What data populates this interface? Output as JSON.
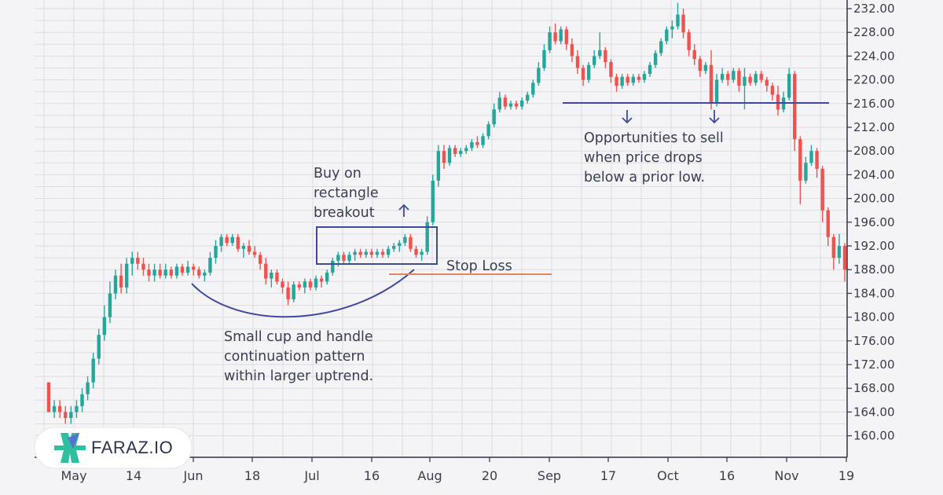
{
  "chart_data": {
    "type": "candlestick",
    "title": "",
    "xlabel": "",
    "ylabel": "",
    "ylim": [
      158,
      233
    ],
    "y_ticks": [
      "232.00",
      "228.00",
      "224.00",
      "220.00",
      "216.00",
      "212.00",
      "208.00",
      "204.00",
      "200.00",
      "196.00",
      "192.00",
      "188.00",
      "184.00",
      "180.00",
      "176.00",
      "172.00",
      "168.00",
      "164.00",
      "160.00"
    ],
    "x_ticks": [
      "May",
      "14",
      "Jun",
      "18",
      "Jul",
      "16",
      "Aug",
      "20",
      "Sep",
      "17",
      "Oct",
      "16",
      "Nov",
      "19"
    ],
    "up_color": "#26a69a",
    "down_color": "#ef5350",
    "candles": [
      {
        "o": 169,
        "h": 169,
        "l": 164,
        "c": 164
      },
      {
        "o": 164,
        "h": 166,
        "l": 163,
        "c": 165
      },
      {
        "o": 165,
        "h": 166,
        "l": 163,
        "c": 164
      },
      {
        "o": 164,
        "h": 165,
        "l": 162,
        "c": 163
      },
      {
        "o": 163,
        "h": 165,
        "l": 162,
        "c": 164
      },
      {
        "o": 164,
        "h": 166,
        "l": 163,
        "c": 165
      },
      {
        "o": 165,
        "h": 168,
        "l": 164,
        "c": 167
      },
      {
        "o": 167,
        "h": 170,
        "l": 166,
        "c": 169
      },
      {
        "o": 169,
        "h": 174,
        "l": 168,
        "c": 173
      },
      {
        "o": 173,
        "h": 178,
        "l": 172,
        "c": 177
      },
      {
        "o": 177,
        "h": 182,
        "l": 176,
        "c": 180
      },
      {
        "o": 180,
        "h": 186,
        "l": 179,
        "c": 184
      },
      {
        "o": 184,
        "h": 188,
        "l": 183,
        "c": 187
      },
      {
        "o": 187,
        "h": 189,
        "l": 184,
        "c": 185
      },
      {
        "o": 185,
        "h": 190,
        "l": 184,
        "c": 189
      },
      {
        "o": 189,
        "h": 191,
        "l": 187,
        "c": 190
      },
      {
        "o": 190,
        "h": 191,
        "l": 188,
        "c": 189
      },
      {
        "o": 189,
        "h": 190,
        "l": 187,
        "c": 188
      },
      {
        "o": 188,
        "h": 189,
        "l": 186,
        "c": 187
      },
      {
        "o": 187,
        "h": 189,
        "l": 186,
        "c": 188
      },
      {
        "o": 188,
        "h": 189,
        "l": 186.5,
        "c": 187
      },
      {
        "o": 187,
        "h": 189,
        "l": 186.5,
        "c": 188
      },
      {
        "o": 188,
        "h": 188.5,
        "l": 186.5,
        "c": 187
      },
      {
        "o": 187,
        "h": 189,
        "l": 186.5,
        "c": 188.5
      },
      {
        "o": 188.5,
        "h": 189,
        "l": 187,
        "c": 187.5
      },
      {
        "o": 187.5,
        "h": 189.5,
        "l": 187,
        "c": 188.5
      },
      {
        "o": 188.5,
        "h": 189,
        "l": 187,
        "c": 188
      },
      {
        "o": 188,
        "h": 188.5,
        "l": 186.5,
        "c": 187
      },
      {
        "o": 187,
        "h": 188,
        "l": 186,
        "c": 187.5
      },
      {
        "o": 187.5,
        "h": 191,
        "l": 187,
        "c": 190
      },
      {
        "o": 190,
        "h": 193,
        "l": 189,
        "c": 192
      },
      {
        "o": 192,
        "h": 194,
        "l": 191,
        "c": 193.5
      },
      {
        "o": 193.5,
        "h": 194,
        "l": 192,
        "c": 192.5
      },
      {
        "o": 192.5,
        "h": 194,
        "l": 192,
        "c": 193.5
      },
      {
        "o": 193.5,
        "h": 194,
        "l": 191,
        "c": 191.5
      },
      {
        "o": 191.5,
        "h": 192.5,
        "l": 190,
        "c": 192
      },
      {
        "o": 192,
        "h": 193,
        "l": 190.5,
        "c": 191
      },
      {
        "o": 191,
        "h": 192,
        "l": 190,
        "c": 190.5
      },
      {
        "o": 190.5,
        "h": 191,
        "l": 188,
        "c": 189
      },
      {
        "o": 189,
        "h": 190,
        "l": 185.5,
        "c": 186.5
      },
      {
        "o": 186.5,
        "h": 188,
        "l": 185,
        "c": 187.5
      },
      {
        "o": 187.5,
        "h": 188,
        "l": 185.5,
        "c": 186
      },
      {
        "o": 186,
        "h": 186.5,
        "l": 184,
        "c": 185
      },
      {
        "o": 185,
        "h": 186,
        "l": 182,
        "c": 183
      },
      {
        "o": 183,
        "h": 186,
        "l": 182.5,
        "c": 185.5
      },
      {
        "o": 185.5,
        "h": 186,
        "l": 184.5,
        "c": 185
      },
      {
        "o": 185,
        "h": 186.5,
        "l": 184,
        "c": 186
      },
      {
        "o": 186,
        "h": 186.5,
        "l": 184.5,
        "c": 185
      },
      {
        "o": 185,
        "h": 187,
        "l": 184.5,
        "c": 186.5
      },
      {
        "o": 186.5,
        "h": 187,
        "l": 185,
        "c": 186
      },
      {
        "o": 186,
        "h": 188,
        "l": 185.5,
        "c": 187.5
      },
      {
        "o": 187.5,
        "h": 190,
        "l": 187,
        "c": 189.5
      },
      {
        "o": 189.5,
        "h": 191,
        "l": 188.5,
        "c": 190.5
      },
      {
        "o": 190.5,
        "h": 191,
        "l": 189,
        "c": 189.5
      },
      {
        "o": 189.5,
        "h": 191,
        "l": 189,
        "c": 190.5
      },
      {
        "o": 190.5,
        "h": 191.5,
        "l": 189.5,
        "c": 191
      },
      {
        "o": 191,
        "h": 191.5,
        "l": 190,
        "c": 190.5
      },
      {
        "o": 190.5,
        "h": 191.5,
        "l": 190,
        "c": 191
      },
      {
        "o": 191,
        "h": 191.5,
        "l": 190,
        "c": 190.5
      },
      {
        "o": 190.5,
        "h": 191.5,
        "l": 190,
        "c": 191
      },
      {
        "o": 191,
        "h": 191.5,
        "l": 190,
        "c": 190.5
      },
      {
        "o": 190.5,
        "h": 192,
        "l": 190,
        "c": 191.5
      },
      {
        "o": 191.5,
        "h": 192.5,
        "l": 191,
        "c": 192
      },
      {
        "o": 192,
        "h": 193,
        "l": 191,
        "c": 192.5
      },
      {
        "o": 192.5,
        "h": 194,
        "l": 192,
        "c": 193.5
      },
      {
        "o": 193.5,
        "h": 194,
        "l": 191,
        "c": 191.5
      },
      {
        "o": 191.5,
        "h": 192,
        "l": 190,
        "c": 190.5
      },
      {
        "o": 190.5,
        "h": 191.5,
        "l": 189.5,
        "c": 191
      },
      {
        "o": 191,
        "h": 197,
        "l": 190.5,
        "c": 196
      },
      {
        "o": 196,
        "h": 204,
        "l": 195.5,
        "c": 203
      },
      {
        "o": 203,
        "h": 209,
        "l": 202,
        "c": 208
      },
      {
        "o": 208,
        "h": 209,
        "l": 205,
        "c": 206
      },
      {
        "o": 206,
        "h": 209,
        "l": 205.5,
        "c": 208.5
      },
      {
        "o": 208.5,
        "h": 209,
        "l": 207,
        "c": 207.5
      },
      {
        "o": 207.5,
        "h": 208.5,
        "l": 207,
        "c": 208
      },
      {
        "o": 208,
        "h": 209,
        "l": 207.5,
        "c": 208.5
      },
      {
        "o": 208.5,
        "h": 210,
        "l": 208,
        "c": 209.5
      },
      {
        "o": 209.5,
        "h": 210.5,
        "l": 208.5,
        "c": 209
      },
      {
        "o": 209,
        "h": 211,
        "l": 208.5,
        "c": 210.5
      },
      {
        "o": 210.5,
        "h": 213,
        "l": 210,
        "c": 212.5
      },
      {
        "o": 212.5,
        "h": 216,
        "l": 212,
        "c": 215
      },
      {
        "o": 215,
        "h": 218,
        "l": 214.5,
        "c": 217
      },
      {
        "o": 217,
        "h": 217.5,
        "l": 215,
        "c": 215.5
      },
      {
        "o": 215.5,
        "h": 216.5,
        "l": 215,
        "c": 216
      },
      {
        "o": 216,
        "h": 216.5,
        "l": 215,
        "c": 215.5
      },
      {
        "o": 215.5,
        "h": 217,
        "l": 215,
        "c": 216.5
      },
      {
        "o": 216.5,
        "h": 218,
        "l": 216,
        "c": 217.5
      },
      {
        "o": 217.5,
        "h": 220,
        "l": 217,
        "c": 219.5
      },
      {
        "o": 219.5,
        "h": 223,
        "l": 219,
        "c": 222
      },
      {
        "o": 222,
        "h": 226,
        "l": 221.5,
        "c": 225
      },
      {
        "o": 225,
        "h": 229,
        "l": 224.5,
        "c": 228
      },
      {
        "o": 228,
        "h": 229.5,
        "l": 226,
        "c": 226.5
      },
      {
        "o": 226.5,
        "h": 229,
        "l": 226,
        "c": 228.5
      },
      {
        "o": 228.5,
        "h": 229,
        "l": 225,
        "c": 226
      },
      {
        "o": 226,
        "h": 227,
        "l": 223,
        "c": 224
      },
      {
        "o": 224,
        "h": 225,
        "l": 221,
        "c": 222
      },
      {
        "o": 222,
        "h": 222.5,
        "l": 219,
        "c": 220
      },
      {
        "o": 220,
        "h": 223,
        "l": 219.5,
        "c": 222.5
      },
      {
        "o": 222.5,
        "h": 225,
        "l": 222,
        "c": 224
      },
      {
        "o": 224,
        "h": 228,
        "l": 223.5,
        "c": 225
      },
      {
        "o": 225,
        "h": 225.5,
        "l": 222,
        "c": 223
      },
      {
        "o": 223,
        "h": 223.5,
        "l": 219.5,
        "c": 220.5
      },
      {
        "o": 220.5,
        "h": 221,
        "l": 218,
        "c": 219
      },
      {
        "o": 219,
        "h": 221,
        "l": 218.5,
        "c": 220.5
      },
      {
        "o": 220.5,
        "h": 221,
        "l": 219,
        "c": 219.5
      },
      {
        "o": 219.5,
        "h": 221,
        "l": 219,
        "c": 220.5
      },
      {
        "o": 220.5,
        "h": 221,
        "l": 219.5,
        "c": 220
      },
      {
        "o": 220,
        "h": 221.5,
        "l": 219.5,
        "c": 221
      },
      {
        "o": 221,
        "h": 223,
        "l": 220.5,
        "c": 222.5
      },
      {
        "o": 222.5,
        "h": 225,
        "l": 222,
        "c": 224.5
      },
      {
        "o": 224.5,
        "h": 227,
        "l": 224,
        "c": 226.5
      },
      {
        "o": 226.5,
        "h": 229,
        "l": 226,
        "c": 228.5
      },
      {
        "o": 228.5,
        "h": 230,
        "l": 227,
        "c": 229
      },
      {
        "o": 229,
        "h": 233,
        "l": 228.5,
        "c": 231
      },
      {
        "o": 231,
        "h": 232,
        "l": 227,
        "c": 228
      },
      {
        "o": 228,
        "h": 228.5,
        "l": 224,
        "c": 225
      },
      {
        "o": 225,
        "h": 226,
        "l": 222.5,
        "c": 223.5
      },
      {
        "o": 223.5,
        "h": 224,
        "l": 220.5,
        "c": 221.5
      },
      {
        "o": 221.5,
        "h": 223,
        "l": 221,
        "c": 222.5
      },
      {
        "o": 222.5,
        "h": 225,
        "l": 215,
        "c": 216
      },
      {
        "o": 216,
        "h": 221,
        "l": 215.5,
        "c": 220
      },
      {
        "o": 220,
        "h": 222,
        "l": 219.5,
        "c": 221
      },
      {
        "o": 221,
        "h": 221.5,
        "l": 219,
        "c": 220
      },
      {
        "o": 220,
        "h": 222,
        "l": 219.5,
        "c": 221.5
      },
      {
        "o": 221.5,
        "h": 222,
        "l": 218,
        "c": 219
      },
      {
        "o": 219,
        "h": 222,
        "l": 215,
        "c": 220.5
      },
      {
        "o": 220.5,
        "h": 221,
        "l": 219,
        "c": 219.5
      },
      {
        "o": 219.5,
        "h": 221.5,
        "l": 219,
        "c": 221
      },
      {
        "o": 221,
        "h": 221.5,
        "l": 219.5,
        "c": 220
      },
      {
        "o": 220,
        "h": 220.5,
        "l": 218,
        "c": 219
      },
      {
        "o": 219,
        "h": 219.5,
        "l": 216.5,
        "c": 217.5
      },
      {
        "o": 217.5,
        "h": 219,
        "l": 214,
        "c": 215
      },
      {
        "o": 215,
        "h": 218,
        "l": 214.5,
        "c": 217
      },
      {
        "o": 217,
        "h": 222,
        "l": 216.5,
        "c": 221
      },
      {
        "o": 221,
        "h": 221.5,
        "l": 208,
        "c": 210
      },
      {
        "o": 210,
        "h": 210.5,
        "l": 199,
        "c": 203
      },
      {
        "o": 203,
        "h": 207,
        "l": 202.5,
        "c": 206
      },
      {
        "o": 206,
        "h": 209,
        "l": 205.5,
        "c": 208
      },
      {
        "o": 208,
        "h": 208.5,
        "l": 203.5,
        "c": 205
      },
      {
        "o": 205,
        "h": 205.5,
        "l": 196,
        "c": 198
      },
      {
        "o": 198,
        "h": 198.5,
        "l": 192,
        "c": 193.5
      },
      {
        "o": 193.5,
        "h": 194,
        "l": 188,
        "c": 190
      },
      {
        "o": 190,
        "h": 194,
        "l": 189,
        "c": 192
      },
      {
        "o": 192,
        "h": 192.5,
        "l": 186,
        "c": 188
      }
    ],
    "annotations": {
      "cup": [
        "Small cup and handle",
        "continuation pattern",
        "within larger uptrend."
      ],
      "buy": [
        "Buy on",
        "rectangle",
        "breakout"
      ],
      "stop": "Stop Loss",
      "sell": [
        "Opportunities to sell",
        "when price drops",
        "below a prior low."
      ]
    },
    "support_level": 216,
    "stop_level": 187.3,
    "rect_top": 195.5,
    "rect_bottom": 189.5
  },
  "logo": {
    "text": "FARAZ.IO"
  }
}
